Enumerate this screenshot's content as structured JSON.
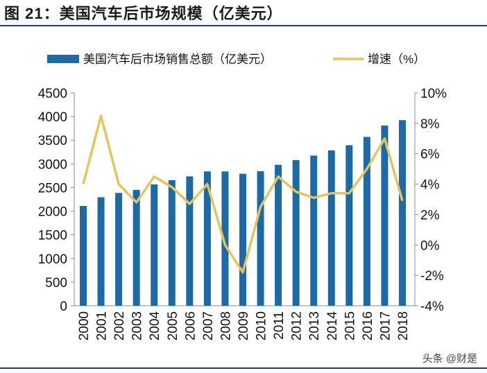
{
  "title": "图 21：美国汽车后市场规模（亿美元）",
  "watermark": "头条 @财是",
  "chart_data": {
    "type": "bar+line",
    "categories": [
      "2000",
      "2001",
      "2002",
      "2003",
      "2004",
      "2005",
      "2006",
      "2007",
      "2008",
      "2009",
      "2010",
      "2011",
      "2012",
      "2013",
      "2014",
      "2015",
      "2016",
      "2017",
      "2018"
    ],
    "series": [
      {
        "name": "美国汽车后市场销售总额（亿美元）",
        "type": "bar",
        "axis": "left",
        "color": "#1b69a5",
        "values": [
          2110,
          2295,
          2385,
          2450,
          2565,
          2655,
          2735,
          2840,
          2840,
          2790,
          2845,
          2980,
          3080,
          3175,
          3285,
          3395,
          3570,
          3810,
          3925
        ]
      },
      {
        "name": "增速（%）",
        "type": "line",
        "axis": "right",
        "color": "#e6c35c",
        "values": [
          4.0,
          8.5,
          4.0,
          2.8,
          4.5,
          3.8,
          2.7,
          4.0,
          0.0,
          -1.8,
          2.5,
          4.5,
          3.5,
          3.1,
          3.4,
          3.4,
          5.0,
          7.0,
          2.9
        ]
      }
    ],
    "left_axis": {
      "ylim": [
        0,
        4500
      ],
      "ticks": [
        "0",
        "500",
        "1000",
        "1500",
        "2000",
        "2500",
        "3000",
        "3500",
        "4000",
        "4500"
      ]
    },
    "right_axis": {
      "ylim": [
        -4,
        10
      ],
      "ticks": [
        "-4%",
        "-2%",
        "0%",
        "2%",
        "4%",
        "6%",
        "8%",
        "10%"
      ]
    },
    "legend": "top",
    "grid": false
  }
}
